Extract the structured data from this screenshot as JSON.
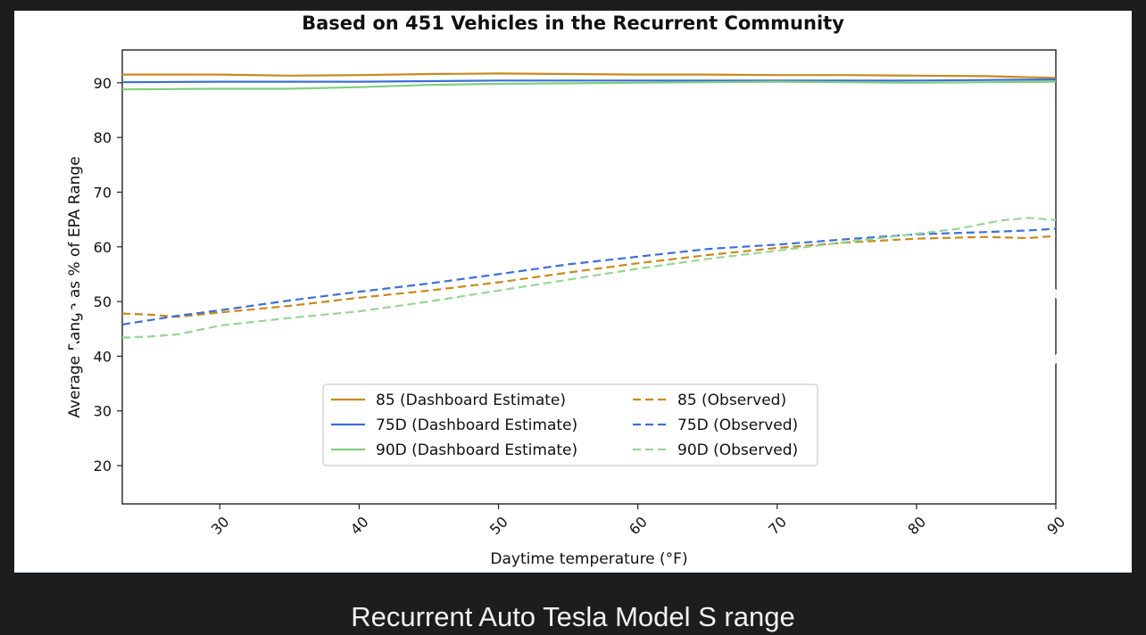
{
  "caption": "Recurrent Auto Tesla Model S range",
  "navigation": {
    "prev_icon": "chevron-left-icon",
    "next_icon": "chevron-right-icon"
  },
  "chart_data": {
    "type": "line",
    "title": "Based on 451 Vehicles in the Recurrent Community",
    "xlabel": "Daytime temperature (°F)",
    "ylabel": "Average Range as % of EPA Range",
    "xlim": [
      23,
      90
    ],
    "ylim": [
      13,
      96
    ],
    "xticks": [
      30,
      40,
      50,
      60,
      70,
      80,
      90
    ],
    "yticks": [
      20,
      30,
      40,
      50,
      60,
      70,
      80,
      90
    ],
    "grid": false,
    "legend_position": "lower-center",
    "series": [
      {
        "name": "85 (Dashboard Estimate)",
        "color": "#c98a1c",
        "style": "solid",
        "x": [
          23,
          30,
          35,
          40,
          45,
          50,
          55,
          60,
          65,
          70,
          75,
          80,
          85,
          90
        ],
        "y": [
          91.5,
          91.5,
          91.3,
          91.4,
          91.6,
          91.7,
          91.6,
          91.5,
          91.5,
          91.4,
          91.4,
          91.3,
          91.2,
          90.9
        ]
      },
      {
        "name": "75D (Dashboard Estimate)",
        "color": "#3d6fd9",
        "style": "solid",
        "x": [
          23,
          30,
          35,
          40,
          45,
          50,
          55,
          60,
          65,
          70,
          75,
          80,
          85,
          90
        ],
        "y": [
          90.1,
          90.2,
          90.2,
          90.2,
          90.3,
          90.4,
          90.4,
          90.4,
          90.4,
          90.4,
          90.4,
          90.4,
          90.5,
          90.6
        ]
      },
      {
        "name": "90D (Dashboard Estimate)",
        "color": "#7fcf7f",
        "style": "solid",
        "x": [
          23,
          30,
          35,
          40,
          45,
          50,
          55,
          60,
          65,
          70,
          75,
          80,
          85,
          90
        ],
        "y": [
          88.8,
          88.9,
          88.9,
          89.2,
          89.6,
          89.8,
          89.9,
          90.0,
          90.1,
          90.2,
          90.1,
          90.0,
          90.1,
          90.2
        ]
      },
      {
        "name": "85 (Observed)",
        "color": "#c98a1c",
        "style": "dashed",
        "x": [
          23,
          25,
          27,
          30,
          35,
          40,
          45,
          50,
          55,
          60,
          65,
          70,
          75,
          80,
          85,
          88,
          90
        ],
        "y": [
          47.8,
          47.6,
          47.2,
          48.0,
          49.2,
          50.7,
          52.0,
          53.5,
          55.3,
          57.0,
          58.5,
          59.8,
          60.8,
          61.5,
          61.8,
          61.6,
          62.0
        ]
      },
      {
        "name": "75D (Observed)",
        "color": "#3d6fd9",
        "style": "dashed",
        "x": [
          23,
          25,
          27,
          30,
          35,
          40,
          45,
          50,
          55,
          60,
          65,
          70,
          75,
          80,
          85,
          88,
          90
        ],
        "y": [
          45.8,
          46.6,
          47.4,
          48.4,
          50.2,
          51.8,
          53.3,
          55.0,
          56.8,
          58.2,
          59.6,
          60.4,
          61.4,
          62.3,
          62.7,
          63.0,
          63.3
        ]
      },
      {
        "name": "90D (Observed)",
        "color": "#95d695",
        "style": "dashed",
        "x": [
          23,
          25,
          27,
          30,
          35,
          40,
          45,
          50,
          55,
          60,
          65,
          70,
          75,
          80,
          83,
          86,
          88,
          90
        ],
        "y": [
          43.4,
          43.6,
          44.0,
          45.6,
          47.0,
          48.2,
          50.0,
          52.0,
          54.0,
          56.0,
          57.8,
          59.3,
          60.9,
          62.4,
          63.3,
          64.8,
          65.3,
          64.9
        ]
      }
    ]
  }
}
